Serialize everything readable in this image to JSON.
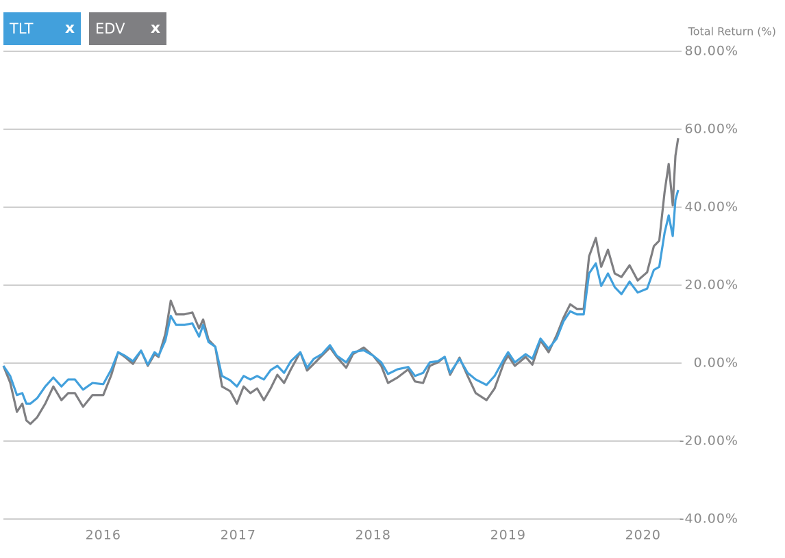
{
  "chart_data": {
    "type": "line",
    "y_axis_label": "Total Return (%)",
    "legend_close_label": "x",
    "x": [
      2015.26,
      2015.31,
      2015.36,
      2015.4,
      2015.43,
      2015.46,
      2015.51,
      2015.57,
      2015.63,
      2015.69,
      2015.74,
      2015.79,
      2015.85,
      2015.92,
      2016.0,
      2016.06,
      2016.11,
      2016.16,
      2016.22,
      2016.28,
      2016.33,
      2016.38,
      2016.41,
      2016.46,
      2016.5,
      2016.54,
      2016.6,
      2016.66,
      2016.71,
      2016.74,
      2016.78,
      2016.83,
      2016.88,
      2016.94,
      2016.99,
      2017.04,
      2017.09,
      2017.14,
      2017.19,
      2017.24,
      2017.29,
      2017.34,
      2017.39,
      2017.46,
      2017.51,
      2017.56,
      2017.62,
      2017.68,
      2017.73,
      2017.8,
      2017.85,
      2017.93,
      2018.0,
      2018.06,
      2018.11,
      2018.18,
      2018.26,
      2018.31,
      2018.37,
      2018.42,
      2018.48,
      2018.53,
      2018.57,
      2018.64,
      2018.7,
      2018.76,
      2018.84,
      2018.9,
      2018.97,
      2019.0,
      2019.05,
      2019.13,
      2019.18,
      2019.24,
      2019.3,
      2019.36,
      2019.41,
      2019.46,
      2019.51,
      2019.56,
      2019.6,
      2019.65,
      2019.69,
      2019.74,
      2019.79,
      2019.84,
      2019.9,
      2019.96,
      2020.03,
      2020.08,
      2020.12,
      2020.16,
      2020.19,
      2020.22,
      2020.24,
      2020.26
    ],
    "series": [
      {
        "name": "TLT",
        "color": "#42a0dc",
        "values": [
          -0.7,
          -3.3,
          -8.2,
          -7.7,
          -10.4,
          -10.4,
          -9,
          -6,
          -3.7,
          -6,
          -4.2,
          -4.2,
          -6.8,
          -5.1,
          -5.4,
          -1.6,
          2.8,
          1.9,
          0.5,
          3.2,
          -0.4,
          2.8,
          1.9,
          5.8,
          12.1,
          9.8,
          9.8,
          10.2,
          6.8,
          9.8,
          5.4,
          4.2,
          -3.3,
          -4.4,
          -6,
          -3.3,
          -4.2,
          -3.3,
          -4.2,
          -1.8,
          -0.7,
          -2.5,
          0.5,
          2.8,
          -1.2,
          1.1,
          2.3,
          4.6,
          1.9,
          0.2,
          2.8,
          3.3,
          1.9,
          0.2,
          -2.8,
          -1.6,
          -1,
          -3.3,
          -2.5,
          0.2,
          0.5,
          1.6,
          -2.5,
          1.1,
          -2.5,
          -4.2,
          -5.6,
          -3.3,
          1.1,
          2.8,
          0.2,
          2.3,
          1.1,
          6.3,
          3.7,
          6.3,
          10.7,
          13.3,
          12.5,
          12.5,
          23,
          25.6,
          19.8,
          23,
          19.5,
          17.7,
          20.9,
          18.1,
          19.1,
          23.9,
          24.7,
          33.5,
          37.9,
          32.6,
          41.9,
          44.4
        ]
      },
      {
        "name": "EDV",
        "color": "#7f7f82",
        "values": [
          -0.7,
          -5,
          -12.5,
          -10.4,
          -14.7,
          -15.6,
          -13.9,
          -10.4,
          -6,
          -9.5,
          -7.7,
          -7.7,
          -11.2,
          -8.2,
          -8.2,
          -3,
          2.8,
          1.6,
          -0.2,
          3.2,
          -0.7,
          2.3,
          1.6,
          7.5,
          16,
          12.5,
          12.5,
          13,
          8.9,
          11.2,
          6,
          4.2,
          -6,
          -7.2,
          -10.4,
          -6,
          -7.7,
          -6.5,
          -9.5,
          -6.5,
          -3,
          -5.1,
          -1.6,
          2.8,
          -1.9,
          -0.2,
          1.9,
          4,
          1.6,
          -1.2,
          2.3,
          4,
          1.9,
          -0.7,
          -5.1,
          -3.7,
          -1.6,
          -4.7,
          -5.1,
          -0.7,
          0.2,
          1.6,
          -3,
          1.4,
          -3.3,
          -7.7,
          -9.5,
          -6.5,
          0.2,
          1.9,
          -0.7,
          1.6,
          -0.4,
          5.8,
          2.8,
          7.2,
          11.6,
          15.1,
          13.9,
          13.9,
          27.4,
          32.1,
          24.7,
          29.1,
          23,
          22.1,
          25.1,
          21.2,
          23.3,
          30,
          31.4,
          44,
          51.1,
          40.5,
          53.2,
          57.7
        ]
      }
    ],
    "xlim": [
      2015.26,
      2020.26
    ],
    "xticks": [
      2016,
      2017,
      2018,
      2019,
      2020
    ],
    "ylim": [
      -40,
      80
    ],
    "yticks": [
      {
        "value": -40,
        "label": "-40.00%"
      },
      {
        "value": -20,
        "label": "-20.00%"
      },
      {
        "value": 0,
        "label": "0.00%"
      },
      {
        "value": 20,
        "label": "20.00%"
      },
      {
        "value": 40,
        "label": "40.00%"
      },
      {
        "value": 60,
        "label": "60.00%"
      },
      {
        "value": 80,
        "label": "80.00%"
      }
    ],
    "grid": true
  }
}
